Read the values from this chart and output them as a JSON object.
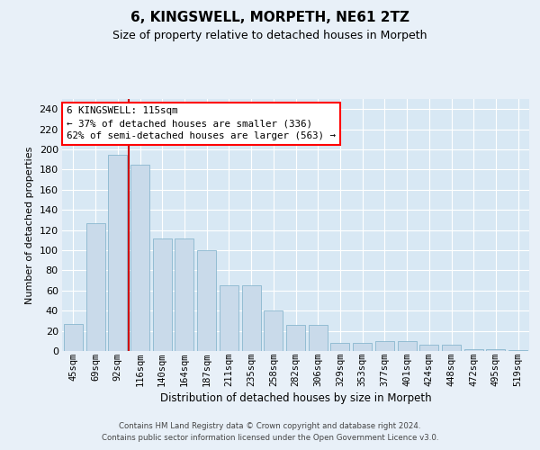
{
  "title": "6, KINGSWELL, MORPETH, NE61 2TZ",
  "subtitle": "Size of property relative to detached houses in Morpeth",
  "xlabel": "Distribution of detached houses by size in Morpeth",
  "ylabel": "Number of detached properties",
  "categories": [
    "45sqm",
    "69sqm",
    "92sqm",
    "116sqm",
    "140sqm",
    "164sqm",
    "187sqm",
    "211sqm",
    "235sqm",
    "258sqm",
    "282sqm",
    "306sqm",
    "329sqm",
    "353sqm",
    "377sqm",
    "401sqm",
    "424sqm",
    "448sqm",
    "472sqm",
    "495sqm",
    "519sqm"
  ],
  "bar_values": [
    27,
    127,
    195,
    185,
    112,
    112,
    100,
    65,
    65,
    40,
    26,
    26,
    8,
    8,
    10,
    10,
    6,
    6,
    2,
    2,
    1
  ],
  "bar_color": "#c9daea",
  "bar_edge_color": "#7aaec8",
  "line_color": "#cc0000",
  "bg_outer": "#e8f0f8",
  "bg_inner": "#d8e8f4",
  "grid_color": "#ffffff",
  "annotation_line1": "6 KINGSWELL: 115sqm",
  "annotation_line2": "← 37% of detached houses are smaller (336)",
  "annotation_line3": "62% of semi-detached houses are larger (563) →",
  "footer1": "Contains HM Land Registry data © Crown copyright and database right 2024.",
  "footer2": "Contains public sector information licensed under the Open Government Licence v3.0.",
  "ylim": [
    0,
    250
  ],
  "yticks": [
    0,
    20,
    40,
    60,
    80,
    100,
    120,
    140,
    160,
    180,
    200,
    220,
    240
  ]
}
